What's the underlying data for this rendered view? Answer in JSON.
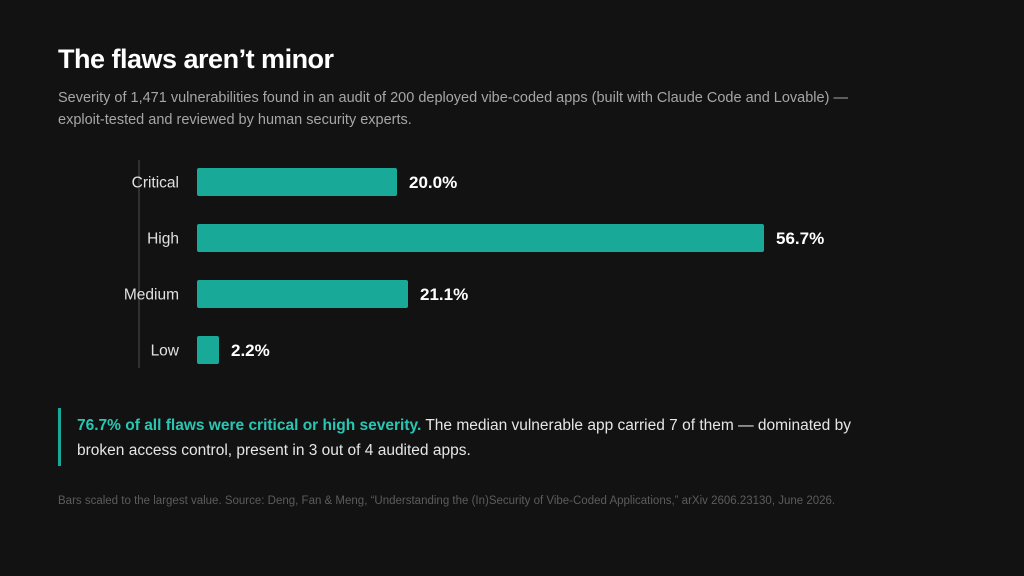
{
  "header": {
    "title": "The flaws aren’t minor",
    "subtitle": "Severity of 1,471 vulnerabilities found in an audit of 200 deployed vibe-coded apps (built with Claude Code and Lovable) — exploit-tested and reviewed by human security experts."
  },
  "chart_data": {
    "type": "bar",
    "orientation": "horizontal",
    "categories": [
      "Critical",
      "High",
      "Medium",
      "Low"
    ],
    "values": [
      20.0,
      56.7,
      21.1,
      2.2
    ],
    "value_labels": [
      "20.0%",
      "56.7%",
      "21.1%",
      "2.2%"
    ],
    "unit": "%",
    "color": "#18a999",
    "grid": false,
    "legend": "none"
  },
  "callout": {
    "highlight": "76.7% of all flaws were critical or high severity.",
    "text": " The median vulnerable app carried 7 of them — dominated by broken access control, present in 3 out of 4 audited apps.",
    "accent_color": "#29c7b3"
  },
  "footnote": "Bars scaled to the largest value. Source: Deng, Fan & Meng, “Understanding the (In)Security of Vibe-Coded Applications,” arXiv 2606.23130, June 2026."
}
